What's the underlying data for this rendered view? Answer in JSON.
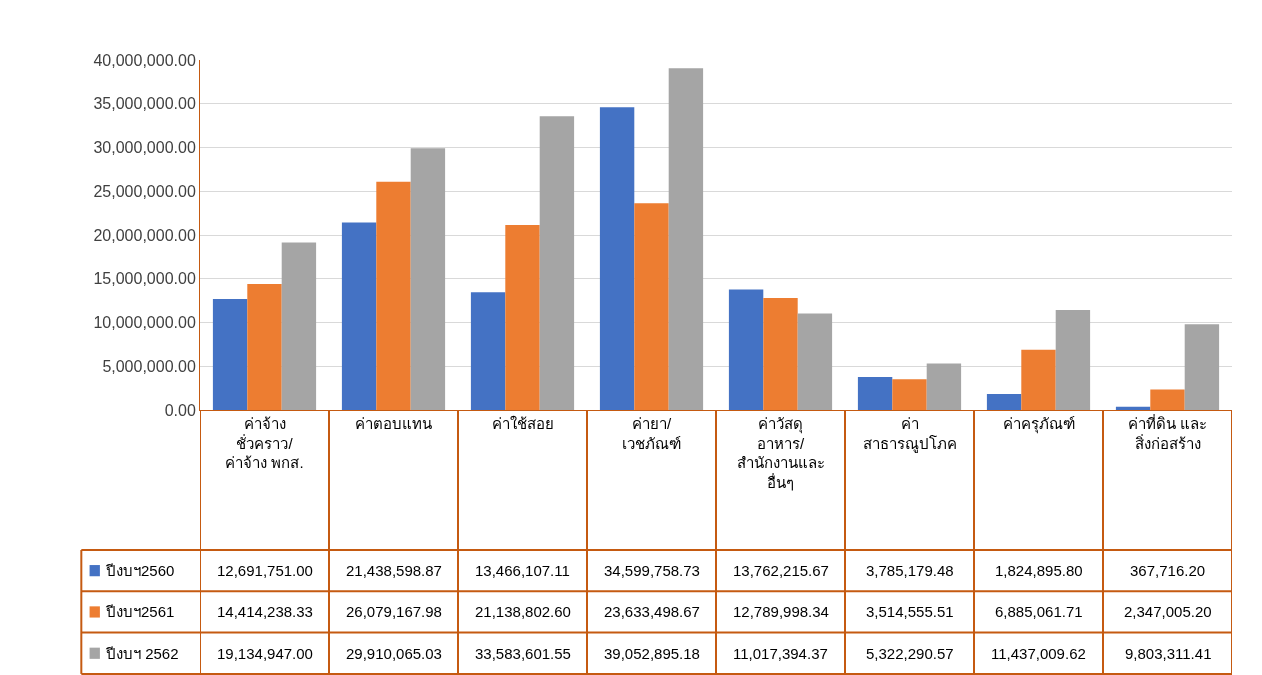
{
  "chart_data": {
    "type": "bar",
    "categories": [
      "ค่าจ้าง\nชั่วคราว/\nค่าจ้าง พกส.",
      "ค่าตอบแทน",
      "ค่าใช้สอย",
      "ค่ายา/\nเวชภัณฑ์",
      "ค่าวัสดุ\nอาหาร/\nสำนักงานและ\nอื่นๆ",
      "ค่า\nสาธารณูปโภค",
      "ค่าครุภัณฑ์",
      "ค่าที่ดิน และ\nสิ่งก่อสร้าง"
    ],
    "series": [
      {
        "name": "ปีงบฯ2560",
        "color": "#4472c4",
        "values": [
          12691751.0,
          21438598.87,
          13466107.11,
          34599758.73,
          13762215.67,
          3785179.48,
          1824895.8,
          367716.2
        ],
        "value_labels": [
          "12,691,751.00",
          "21,438,598.87",
          "13,466,107.11",
          "34,599,758.73",
          "13,762,215.67",
          "3,785,179.48",
          "1,824,895.80",
          "367,716.20"
        ]
      },
      {
        "name": "ปีงบฯ2561",
        "color": "#ed7d31",
        "values": [
          14414238.33,
          26079167.98,
          21138802.6,
          23633498.67,
          12789998.34,
          3514555.51,
          6885061.71,
          2347005.2
        ],
        "value_labels": [
          "14,414,238.33",
          "26,079,167.98",
          "21,138,802.60",
          "23,633,498.67",
          "12,789,998.34",
          "3,514,555.51",
          "6,885,061.71",
          "2,347,005.20"
        ]
      },
      {
        "name": "ปีงบฯ 2562",
        "color": "#a5a5a5",
        "values": [
          19134947.0,
          29910065.03,
          33583601.55,
          39052895.18,
          11017394.37,
          5322290.57,
          11437009.62,
          9803311.41
        ],
        "value_labels": [
          "19,134,947.00",
          "29,910,065.03",
          "33,583,601.55",
          "39,052,895.18",
          "11,017,394.37",
          "5,322,290.57",
          "11,437,009.62",
          "9,803,311.41"
        ]
      }
    ],
    "ylim": [
      0,
      40000000
    ],
    "yticks": [
      {
        "value": 0,
        "label": "0.00"
      },
      {
        "value": 5000000,
        "label": "5,000,000.00"
      },
      {
        "value": 10000000,
        "label": "10,000,000.00"
      },
      {
        "value": 15000000,
        "label": "15,000,000.00"
      },
      {
        "value": 20000000,
        "label": "20,000,000.00"
      },
      {
        "value": 25000000,
        "label": "25,000,000.00"
      },
      {
        "value": 30000000,
        "label": "30,000,000.00"
      },
      {
        "value": 35000000,
        "label": "35,000,000.00"
      },
      {
        "value": 40000000,
        "label": "40,000,000.00"
      }
    ],
    "grid": "y",
    "legend": "bottom left"
  }
}
